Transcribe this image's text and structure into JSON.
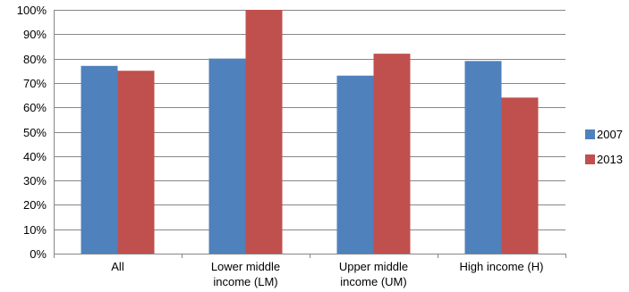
{
  "chart_data": {
    "type": "bar",
    "categories": [
      "All",
      "Lower middle income (LM)",
      "Upper middle income (UM)",
      "High income (H)"
    ],
    "category_lines": [
      [
        "All"
      ],
      [
        "Lower middle",
        "income (LM)"
      ],
      [
        "Upper middle",
        "income (UM)"
      ],
      [
        "High income (H)"
      ]
    ],
    "series": [
      {
        "name": "2007",
        "color": "#4f81bd",
        "values": [
          77,
          80,
          73,
          79
        ]
      },
      {
        "name": "2013",
        "color": "#c0504d",
        "values": [
          75,
          100,
          82,
          64
        ]
      }
    ],
    "ylim": [
      0,
      100
    ],
    "ytick_step": 10,
    "ytick_suffix": "%",
    "grid": true,
    "legend_position": "right"
  }
}
